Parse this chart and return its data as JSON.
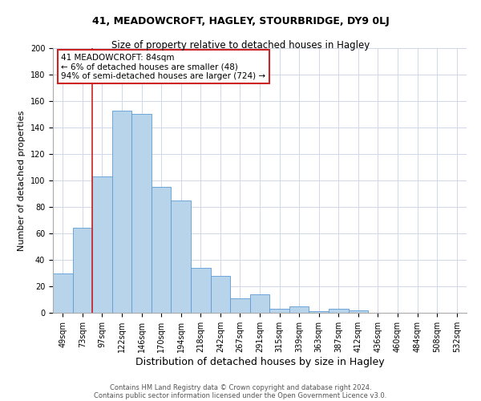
{
  "title1": "41, MEADOWCROFT, HAGLEY, STOURBRIDGE, DY9 0LJ",
  "title2": "Size of property relative to detached houses in Hagley",
  "xlabel": "Distribution of detached houses by size in Hagley",
  "ylabel": "Number of detached properties",
  "bar_labels": [
    "49sqm",
    "73sqm",
    "97sqm",
    "122sqm",
    "146sqm",
    "170sqm",
    "194sqm",
    "218sqm",
    "242sqm",
    "267sqm",
    "291sqm",
    "315sqm",
    "339sqm",
    "363sqm",
    "387sqm",
    "412sqm",
    "436sqm",
    "460sqm",
    "484sqm",
    "508sqm",
    "532sqm"
  ],
  "bar_values": [
    30,
    64,
    103,
    153,
    150,
    95,
    85,
    34,
    28,
    11,
    14,
    3,
    5,
    1,
    3,
    2,
    0,
    0,
    0,
    0,
    0
  ],
  "bar_color": "#b8d4ea",
  "bar_edge_color": "#5b9bd5",
  "grid_color": "#d0d8e8",
  "vline_color": "#cc2222",
  "annotation_line1": "41 MEADOWCROFT: 84sqm",
  "annotation_line2": "← 6% of detached houses are smaller (48)",
  "annotation_line3": "94% of semi-detached houses are larger (724) →",
  "annotation_box_edgecolor": "#cc2222",
  "annotation_box_facecolor": "#ffffff",
  "ylim": [
    0,
    200
  ],
  "yticks": [
    0,
    20,
    40,
    60,
    80,
    100,
    120,
    140,
    160,
    180,
    200
  ],
  "footer1": "Contains HM Land Registry data © Crown copyright and database right 2024.",
  "footer2": "Contains public sector information licensed under the Open Government Licence v3.0.",
  "title1_fontsize": 9,
  "title2_fontsize": 8.5,
  "xlabel_fontsize": 9,
  "ylabel_fontsize": 8,
  "tick_fontsize": 7,
  "footer_fontsize": 6,
  "annotation_fontsize": 7.5
}
